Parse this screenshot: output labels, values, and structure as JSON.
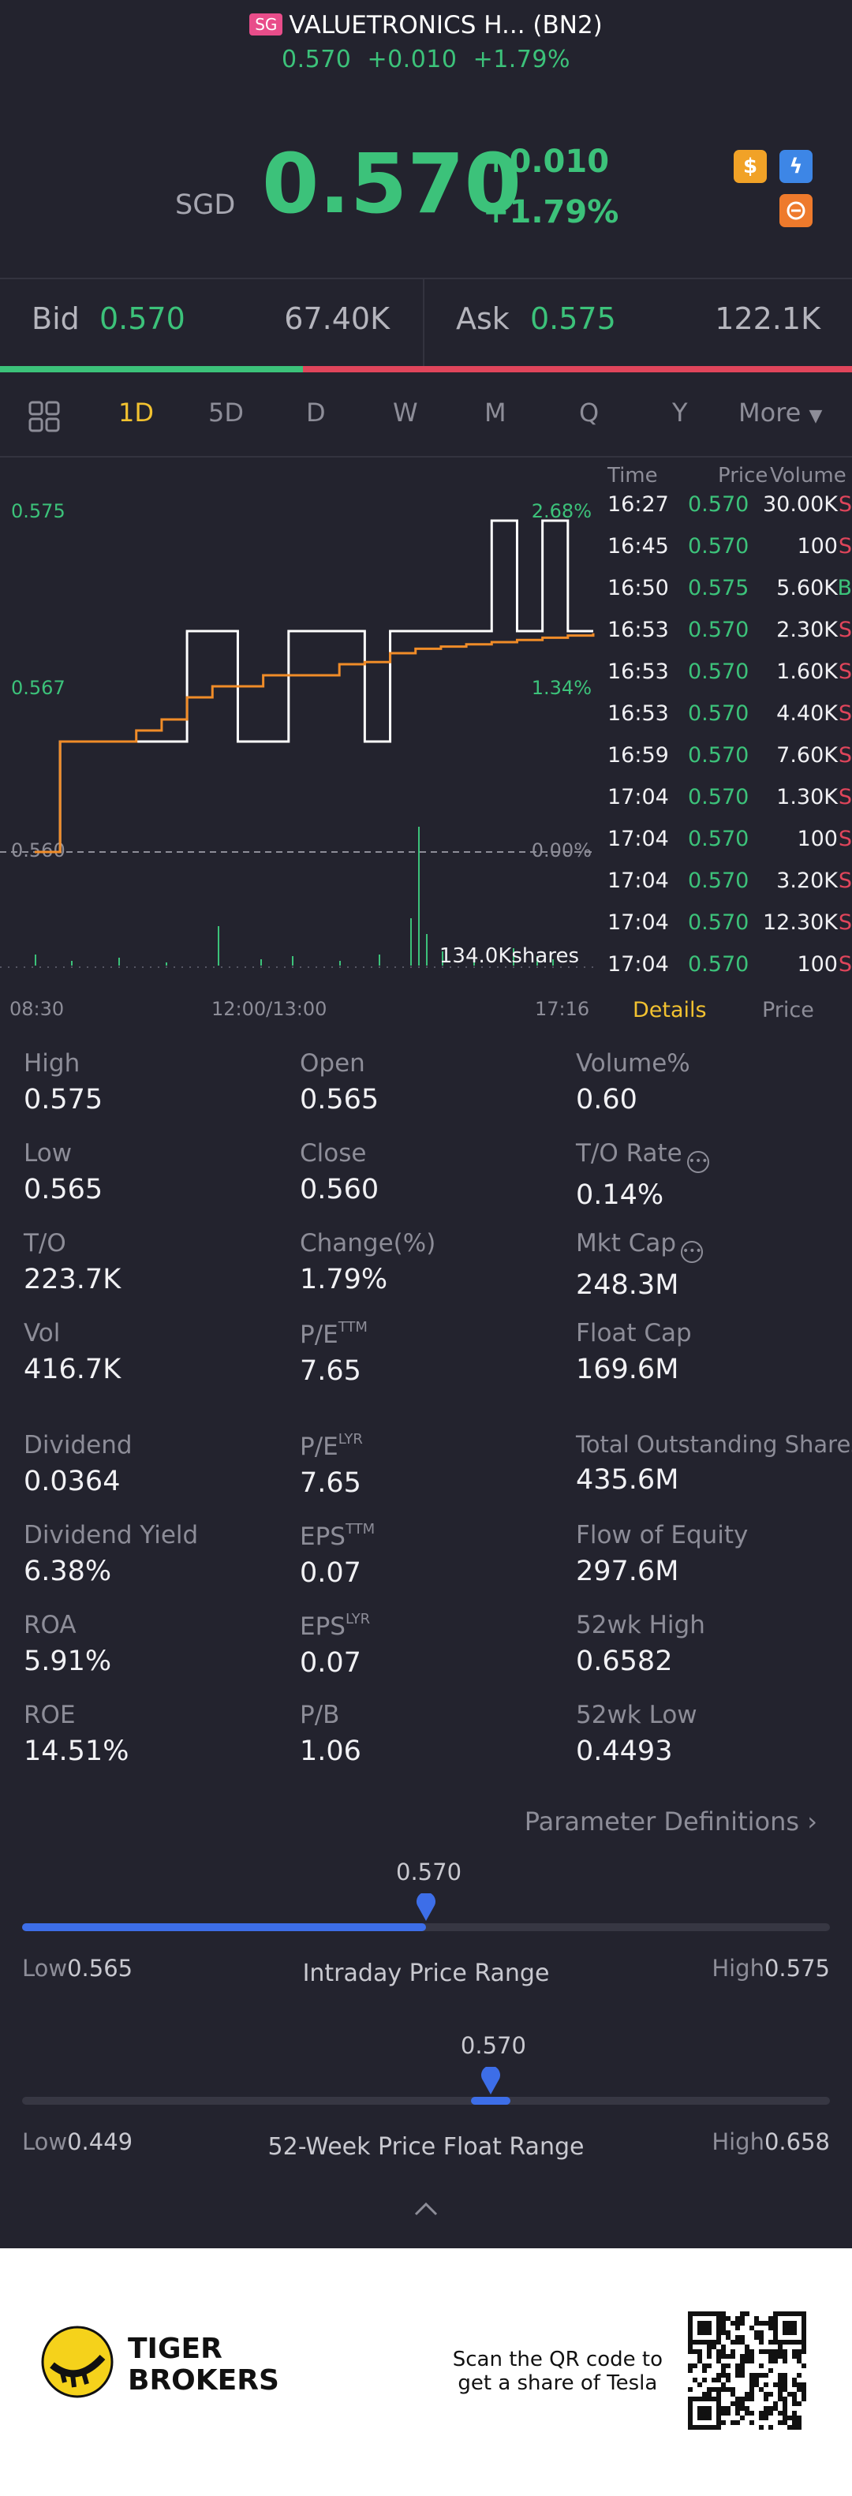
{
  "header": {
    "market_badge": "SG",
    "title": "VALUETRONICS H... (BN2)",
    "sub_price": "0.570",
    "sub_change": "+0.010",
    "sub_change_pct": "+1.79%",
    "currency": "SGD",
    "price": "0.570",
    "change": "+0.010",
    "change_pct": "+1.79%"
  },
  "bidask": {
    "bid_label": "Bid",
    "bid_price": "0.570",
    "bid_size": "67.40K",
    "ask_label": "Ask",
    "ask_price": "0.575",
    "ask_size": "122.1K",
    "bid_share": 0.356
  },
  "tabs": [
    "1D",
    "5D",
    "D",
    "W",
    "M",
    "Q",
    "Y",
    "More"
  ],
  "active_tab": "1D",
  "chart_data": {
    "type": "line",
    "x_ticks": [
      "08:30",
      "12:00/13:00",
      "17:16"
    ],
    "y_labels_left": [
      "0.575",
      "0.567",
      "0.560"
    ],
    "y_labels_right": [
      "2.68%",
      "1.34%",
      "0.00%"
    ],
    "ylim": [
      0.56,
      0.575
    ],
    "prev_close": 0.56,
    "volume_label": "134.0Kshares",
    "series": [
      {
        "values": [
          0.56,
          0.565,
          0.565,
          0.565,
          0.565,
          0.565,
          0.57,
          0.57,
          0.565,
          0.565,
          0.57,
          0.57,
          0.57,
          0.565,
          0.57,
          0.57,
          0.57,
          0.57,
          0.575,
          0.57,
          0.575,
          0.57,
          0.57
        ]
      },
      {
        "values": [
          0.56,
          0.565,
          0.565,
          0.565,
          0.5655,
          0.566,
          0.567,
          0.5675,
          0.5675,
          0.568,
          0.568,
          0.568,
          0.5685,
          0.5686,
          0.569,
          0.5692,
          0.5693,
          0.5694,
          0.5695,
          0.5696,
          0.5697,
          0.5698,
          0.5699
        ]
      }
    ],
    "colors": {
      "price": "#ffffff",
      "avg": "#f08c28",
      "volume": "#3cc27a"
    }
  },
  "ticks": {
    "headers": [
      "Time",
      "Price",
      "Volume"
    ],
    "rows": [
      {
        "time": "16:27",
        "price": "0.570",
        "vol": "30.00K",
        "side": "S"
      },
      {
        "time": "16:45",
        "price": "0.570",
        "vol": "100",
        "side": "S"
      },
      {
        "time": "16:50",
        "price": "0.575",
        "vol": "5.60K",
        "side": "B"
      },
      {
        "time": "16:53",
        "price": "0.570",
        "vol": "2.30K",
        "side": "S"
      },
      {
        "time": "16:53",
        "price": "0.570",
        "vol": "1.60K",
        "side": "S"
      },
      {
        "time": "16:53",
        "price": "0.570",
        "vol": "4.40K",
        "side": "S"
      },
      {
        "time": "16:59",
        "price": "0.570",
        "vol": "7.60K",
        "side": "S"
      },
      {
        "time": "17:04",
        "price": "0.570",
        "vol": "1.30K",
        "side": "S"
      },
      {
        "time": "17:04",
        "price": "0.570",
        "vol": "100",
        "side": "S"
      },
      {
        "time": "17:04",
        "price": "0.570",
        "vol": "3.20K",
        "side": "S"
      },
      {
        "time": "17:04",
        "price": "0.570",
        "vol": "12.30K",
        "side": "S"
      },
      {
        "time": "17:04",
        "price": "0.570",
        "vol": "100",
        "side": "S"
      }
    ]
  },
  "detail_tabs": {
    "details": "Details",
    "price": "Price"
  },
  "stats": {
    "high": {
      "label": "High",
      "value": "0.575"
    },
    "open": {
      "label": "Open",
      "value": "0.565"
    },
    "volume_pct": {
      "label": "Volume%",
      "value": "0.60"
    },
    "low": {
      "label": "Low",
      "value": "0.565"
    },
    "close": {
      "label": "Close",
      "value": "0.560"
    },
    "to_rate": {
      "label": "T/O Rate",
      "value": "0.14%"
    },
    "to": {
      "label": "T/O",
      "value": "223.7K"
    },
    "change_pct": {
      "label": "Change(%)",
      "value": "1.79%"
    },
    "mkt_cap": {
      "label": "Mkt Cap",
      "value": "248.3M"
    },
    "vol": {
      "label": "Vol",
      "value": "416.7K"
    },
    "pe_ttm": {
      "label": "P/E",
      "sup": "TTM",
      "value": "7.65"
    },
    "float_cap": {
      "label": "Float Cap",
      "value": "169.6M"
    },
    "dividend": {
      "label": "Dividend",
      "value": "0.0364"
    },
    "pe_lyr": {
      "label": "P/E",
      "sup": "LYR",
      "value": "7.65"
    },
    "total_shares": {
      "label": "Total Outstanding Shares",
      "value": "435.6M"
    },
    "div_yield": {
      "label": "Dividend Yield",
      "value": "6.38%"
    },
    "eps_ttm": {
      "label": "EPS",
      "sup": "TTM",
      "value": "0.07"
    },
    "flow_equity": {
      "label": "Flow of Equity",
      "value": "297.6M"
    },
    "roa": {
      "label": "ROA",
      "value": "5.91%"
    },
    "eps_lyr": {
      "label": "EPS",
      "sup": "LYR",
      "value": "0.07"
    },
    "wk52_high": {
      "label": "52wk High",
      "value": "0.6582"
    },
    "roe": {
      "label": "ROE",
      "value": "14.51%"
    },
    "pb": {
      "label": "P/B",
      "value": "1.06"
    },
    "wk52_low": {
      "label": "52wk Low",
      "value": "0.4493"
    }
  },
  "param_def": "Parameter Definitions",
  "intraday_range": {
    "current": "0.570",
    "low_label": "Low",
    "low": "0.565",
    "high_label": "High",
    "high": "0.575",
    "title": "Intraday Price Range",
    "position": 0.5
  },
  "week52_range": {
    "current": "0.570",
    "low_label": "Low",
    "low": "0.449",
    "high_label": "High",
    "high": "0.658",
    "title": "52-Week Price Float Range",
    "position": 0.58
  },
  "footer": {
    "brand_line1": "TIGER",
    "brand_line2": "BROKERS",
    "promo_line1": "Scan the QR code to",
    "promo_line2": "get a share of Tesla"
  }
}
